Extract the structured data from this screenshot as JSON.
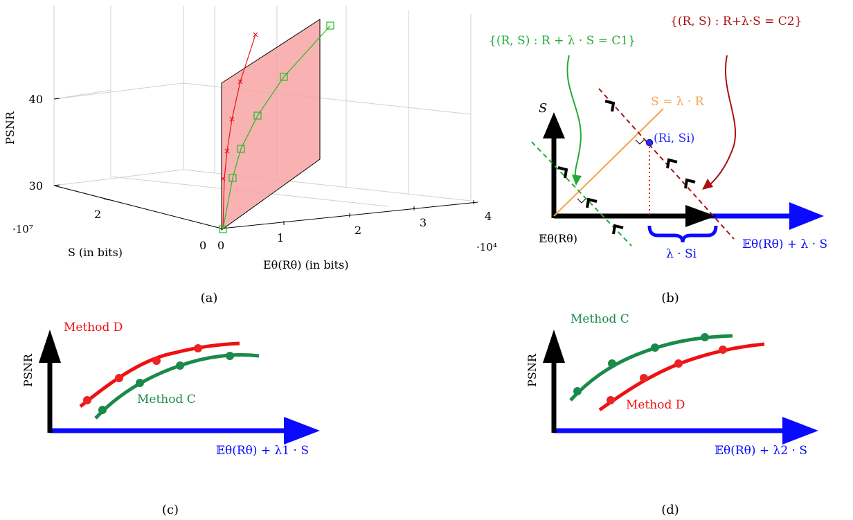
{
  "panel_a": {
    "caption": "(a)",
    "z_label": "PSNR",
    "z_ticks": [
      "30",
      "40"
    ],
    "s_label": "S (in bits)",
    "s_ticks": [
      "0",
      "2"
    ],
    "s_scale": "·10⁷",
    "e_label": "Eθ(Rθ) (in bits)",
    "e_ticks": [
      "0",
      "1",
      "2",
      "3",
      "4"
    ],
    "e_scale": "·10⁴"
  },
  "panel_b": {
    "caption": "(b)",
    "s_axis": "S",
    "origin_label": "𝔼θ(Rθ)",
    "line_label": "S = λ · R",
    "point_label": "(Ri, Si)",
    "brace_label": "λ · Si",
    "x_label": "𝔼θ(Rθ) + λ · S",
    "c1_label": "{(R, S) : R + λ · S = C1}",
    "c2_label": "{(R, S) : R+λ·S = C2}"
  },
  "panel_c": {
    "caption": "(c)",
    "y_label": "PSNR",
    "x_label": "𝔼θ(Rθ) + λ1 · S",
    "method_d": "Method D",
    "method_c": "Method C"
  },
  "panel_d": {
    "caption": "(d)",
    "y_label": "PSNR",
    "x_label": "𝔼θ(Rθ) + λ2 · S",
    "method_c": "Method C",
    "method_d": "Method D"
  },
  "colors": {
    "red": "#ee1111",
    "green": "#22bb22",
    "dark_green": "#1a8a4a",
    "blue": "#0a0aff",
    "dark_red": "#aa1111",
    "orange": "#f4a24b",
    "plane": "#f7a4a4"
  }
}
